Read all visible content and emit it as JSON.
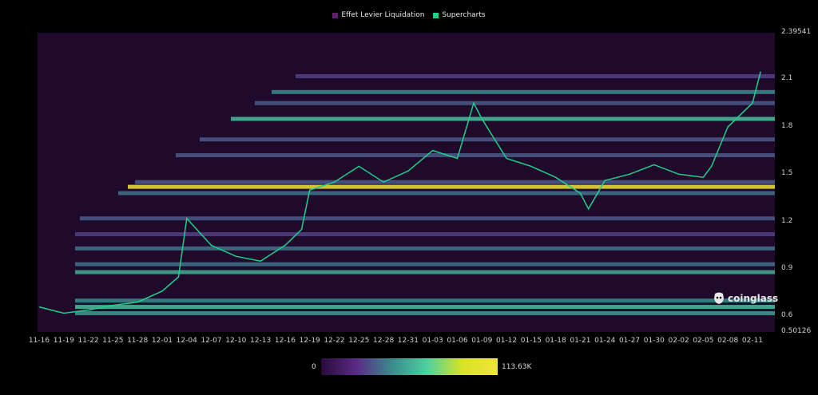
{
  "legend": {
    "items": [
      {
        "label": "Effet Levier Liquidation",
        "color": "#5b1f6b"
      },
      {
        "label": "Supercharts",
        "color": "#1fd08a"
      }
    ]
  },
  "watermark": "coinglass",
  "colorscale": {
    "min_label": "0",
    "max_label": "113.63K",
    "colors": [
      "#2a0b3b",
      "#5a2a85",
      "#3b8a8c",
      "#4dd1a0",
      "#d8e326",
      "#f1e53a"
    ]
  },
  "chart_data": {
    "type": "heatmap",
    "title": "",
    "xlabel": "",
    "ylabel": "",
    "ylim": [
      0.50126,
      2.39541
    ],
    "y_axis_labels": [
      "2.39541",
      "2.1",
      "1.8",
      "1.5",
      "1.2",
      "0.9",
      "0.6",
      "0.50126"
    ],
    "x_axis_labels": [
      "11-16",
      "11-19",
      "11-22",
      "11-25",
      "11-28",
      "12-01",
      "12-04",
      "12-07",
      "12-10",
      "12-13",
      "12-16",
      "12-19",
      "12-22",
      "12-25",
      "12-28",
      "12-31",
      "01-03",
      "01-06",
      "01-09",
      "01-12",
      "01-15",
      "01-18",
      "01-21",
      "01-24",
      "01-27",
      "01-30",
      "02-02",
      "02-05",
      "02-08",
      "02-11"
    ],
    "price_series": {
      "name": "Supercharts",
      "x": [
        "11-16",
        "11-19",
        "11-22",
        "11-25",
        "11-28",
        "12-01",
        "12-03",
        "12-04",
        "12-07",
        "12-10",
        "12-13",
        "12-16",
        "12-18",
        "12-19",
        "12-22",
        "12-25",
        "12-28",
        "12-31",
        "01-03",
        "01-06",
        "01-08",
        "01-09",
        "01-12",
        "01-15",
        "01-18",
        "01-21",
        "01-22",
        "01-24",
        "01-27",
        "01-30",
        "02-02",
        "02-05",
        "02-06",
        "02-08",
        "02-11",
        "02-12"
      ],
      "y": [
        0.66,
        0.62,
        0.64,
        0.67,
        0.69,
        0.76,
        0.85,
        1.22,
        1.05,
        0.98,
        0.95,
        1.05,
        1.15,
        1.4,
        1.45,
        1.55,
        1.45,
        1.52,
        1.65,
        1.6,
        1.95,
        1.85,
        1.6,
        1.55,
        1.48,
        1.38,
        1.28,
        1.46,
        1.5,
        1.56,
        1.5,
        1.48,
        1.55,
        1.8,
        1.95,
        2.15
      ]
    },
    "liquidation_levels": [
      {
        "price": 0.62,
        "intensity": 0.45
      },
      {
        "price": 0.66,
        "intensity": 0.55
      },
      {
        "price": 0.7,
        "intensity": 0.4
      },
      {
        "price": 0.88,
        "intensity": 0.5
      },
      {
        "price": 0.93,
        "intensity": 0.35
      },
      {
        "price": 1.03,
        "intensity": 0.35
      },
      {
        "price": 1.12,
        "intensity": 0.25
      },
      {
        "price": 1.22,
        "intensity": 0.3
      },
      {
        "price": 1.38,
        "intensity": 0.35
      },
      {
        "price": 1.42,
        "intensity": 1.0
      },
      {
        "price": 1.45,
        "intensity": 0.3
      },
      {
        "price": 1.62,
        "intensity": 0.3
      },
      {
        "price": 1.72,
        "intensity": 0.3
      },
      {
        "price": 1.85,
        "intensity": 0.55
      },
      {
        "price": 1.95,
        "intensity": 0.3
      },
      {
        "price": 2.02,
        "intensity": 0.4
      },
      {
        "price": 2.12,
        "intensity": 0.25
      }
    ]
  }
}
